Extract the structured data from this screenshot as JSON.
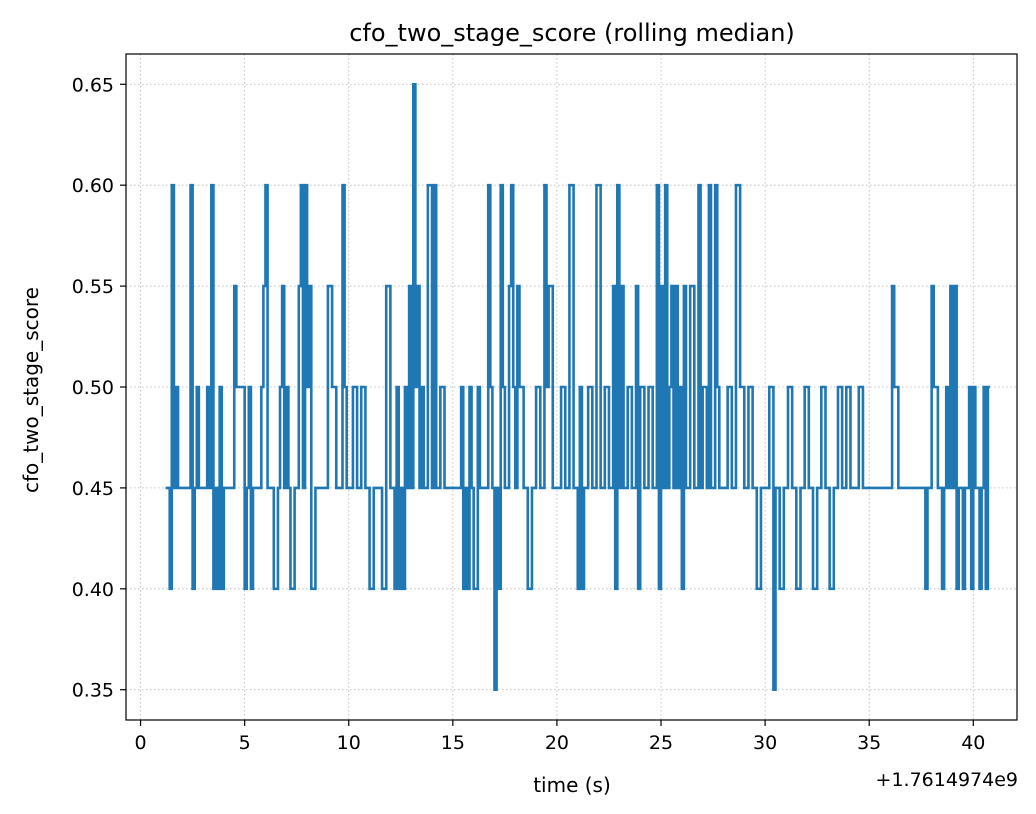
{
  "chart_data": {
    "type": "line",
    "title": "cfo_two_stage_score (rolling median)",
    "xlabel": "time (s)",
    "ylabel": "cfo_two_stage_score",
    "x_offset_label": "+1.7614974e9",
    "xlim": [
      -0.7,
      42.1
    ],
    "ylim": [
      0.335,
      0.665
    ],
    "xticks": [
      0,
      5,
      10,
      15,
      20,
      25,
      30,
      35,
      40
    ],
    "xtick_labels": [
      "0",
      "5",
      "10",
      "15",
      "20",
      "25",
      "30",
      "35",
      "40"
    ],
    "yticks": [
      0.35,
      0.4,
      0.45,
      0.5,
      0.55,
      0.6,
      0.65
    ],
    "ytick_labels": [
      "0.35",
      "0.40",
      "0.45",
      "0.50",
      "0.55",
      "0.60",
      "0.65"
    ],
    "grid": true,
    "line_color": "#1f77b4",
    "series": [
      {
        "step": true,
        "points": [
          [
            1.2,
            0.45
          ],
          [
            1.3,
            0.45
          ],
          [
            1.4,
            0.4
          ],
          [
            1.5,
            0.6
          ],
          [
            1.6,
            0.45
          ],
          [
            1.7,
            0.5
          ],
          [
            1.8,
            0.45
          ],
          [
            2.2,
            0.45
          ],
          [
            2.4,
            0.6
          ],
          [
            2.5,
            0.4
          ],
          [
            2.6,
            0.45
          ],
          [
            2.7,
            0.5
          ],
          [
            2.8,
            0.45
          ],
          [
            3.0,
            0.45
          ],
          [
            3.2,
            0.5
          ],
          [
            3.3,
            0.45
          ],
          [
            3.4,
            0.6
          ],
          [
            3.5,
            0.4
          ],
          [
            3.6,
            0.45
          ],
          [
            3.7,
            0.4
          ],
          [
            3.8,
            0.5
          ],
          [
            3.9,
            0.4
          ],
          [
            4.0,
            0.45
          ],
          [
            4.2,
            0.45
          ],
          [
            4.5,
            0.55
          ],
          [
            4.6,
            0.5
          ],
          [
            5.0,
            0.4
          ],
          [
            5.1,
            0.45
          ],
          [
            5.2,
            0.5
          ],
          [
            5.3,
            0.4
          ],
          [
            5.4,
            0.45
          ],
          [
            5.6,
            0.45
          ],
          [
            5.8,
            0.5
          ],
          [
            5.9,
            0.55
          ],
          [
            6.0,
            0.6
          ],
          [
            6.1,
            0.45
          ],
          [
            6.3,
            0.45
          ],
          [
            6.4,
            0.4
          ],
          [
            6.6,
            0.45
          ],
          [
            6.7,
            0.5
          ],
          [
            6.8,
            0.55
          ],
          [
            6.9,
            0.45
          ],
          [
            7.0,
            0.5
          ],
          [
            7.1,
            0.45
          ],
          [
            7.2,
            0.4
          ],
          [
            7.4,
            0.45
          ],
          [
            7.6,
            0.55
          ],
          [
            7.7,
            0.6
          ],
          [
            7.8,
            0.45
          ],
          [
            7.9,
            0.6
          ],
          [
            8.0,
            0.5
          ],
          [
            8.1,
            0.55
          ],
          [
            8.2,
            0.4
          ],
          [
            8.4,
            0.45
          ],
          [
            8.6,
            0.45
          ],
          [
            8.8,
            0.45
          ],
          [
            9.0,
            0.55
          ],
          [
            9.2,
            0.5
          ],
          [
            9.4,
            0.45
          ],
          [
            9.6,
            0.45
          ],
          [
            9.7,
            0.6
          ],
          [
            9.8,
            0.5
          ],
          [
            9.9,
            0.45
          ],
          [
            10.0,
            0.45
          ],
          [
            10.2,
            0.5
          ],
          [
            10.4,
            0.45
          ],
          [
            10.6,
            0.5
          ],
          [
            10.8,
            0.45
          ],
          [
            11.0,
            0.4
          ],
          [
            11.2,
            0.45
          ],
          [
            11.4,
            0.45
          ],
          [
            11.6,
            0.4
          ],
          [
            11.8,
            0.55
          ],
          [
            12.0,
            0.45
          ],
          [
            12.2,
            0.4
          ],
          [
            12.3,
            0.5
          ],
          [
            12.4,
            0.4
          ],
          [
            12.5,
            0.45
          ],
          [
            12.6,
            0.4
          ],
          [
            12.7,
            0.5
          ],
          [
            12.8,
            0.45
          ],
          [
            12.9,
            0.55
          ],
          [
            13.0,
            0.45
          ],
          [
            13.1,
            0.65
          ],
          [
            13.2,
            0.5
          ],
          [
            13.3,
            0.55
          ],
          [
            13.4,
            0.45
          ],
          [
            13.5,
            0.5
          ],
          [
            13.6,
            0.45
          ],
          [
            13.8,
            0.6
          ],
          [
            14.0,
            0.45
          ],
          [
            14.1,
            0.6
          ],
          [
            14.2,
            0.45
          ],
          [
            14.4,
            0.5
          ],
          [
            14.6,
            0.45
          ],
          [
            14.8,
            0.45
          ],
          [
            15.0,
            0.45
          ],
          [
            15.2,
            0.45
          ],
          [
            15.4,
            0.5
          ],
          [
            15.5,
            0.4
          ],
          [
            15.6,
            0.45
          ],
          [
            15.7,
            0.4
          ],
          [
            15.8,
            0.5
          ],
          [
            15.9,
            0.45
          ],
          [
            16.0,
            0.4
          ],
          [
            16.2,
            0.5
          ],
          [
            16.3,
            0.45
          ],
          [
            16.5,
            0.45
          ],
          [
            16.7,
            0.6
          ],
          [
            16.8,
            0.5
          ],
          [
            16.9,
            0.45
          ],
          [
            17.0,
            0.35
          ],
          [
            17.1,
            0.45
          ],
          [
            17.2,
            0.4
          ],
          [
            17.3,
            0.6
          ],
          [
            17.4,
            0.5
          ],
          [
            17.5,
            0.45
          ],
          [
            17.7,
            0.55
          ],
          [
            17.8,
            0.6
          ],
          [
            17.9,
            0.5
          ],
          [
            18.0,
            0.45
          ],
          [
            18.1,
            0.55
          ],
          [
            18.2,
            0.5
          ],
          [
            18.4,
            0.45
          ],
          [
            18.6,
            0.4
          ],
          [
            18.8,
            0.45
          ],
          [
            19.0,
            0.5
          ],
          [
            19.2,
            0.45
          ],
          [
            19.4,
            0.6
          ],
          [
            19.5,
            0.5
          ],
          [
            19.6,
            0.55
          ],
          [
            19.8,
            0.45
          ],
          [
            20.0,
            0.45
          ],
          [
            20.2,
            0.5
          ],
          [
            20.4,
            0.45
          ],
          [
            20.6,
            0.6
          ],
          [
            20.8,
            0.45
          ],
          [
            21.0,
            0.4
          ],
          [
            21.1,
            0.5
          ],
          [
            21.2,
            0.4
          ],
          [
            21.3,
            0.45
          ],
          [
            21.5,
            0.5
          ],
          [
            21.7,
            0.45
          ],
          [
            21.9,
            0.6
          ],
          [
            22.1,
            0.45
          ],
          [
            22.3,
            0.5
          ],
          [
            22.5,
            0.45
          ],
          [
            22.7,
            0.55
          ],
          [
            22.8,
            0.4
          ],
          [
            22.9,
            0.6
          ],
          [
            23.0,
            0.45
          ],
          [
            23.1,
            0.55
          ],
          [
            23.2,
            0.45
          ],
          [
            23.4,
            0.5
          ],
          [
            23.6,
            0.45
          ],
          [
            23.8,
            0.55
          ],
          [
            23.9,
            0.4
          ],
          [
            24.0,
            0.5
          ],
          [
            24.2,
            0.45
          ],
          [
            24.4,
            0.5
          ],
          [
            24.6,
            0.45
          ],
          [
            24.8,
            0.6
          ],
          [
            24.9,
            0.4
          ],
          [
            25.0,
            0.55
          ],
          [
            25.1,
            0.45
          ],
          [
            25.2,
            0.6
          ],
          [
            25.3,
            0.45
          ],
          [
            25.4,
            0.5
          ],
          [
            25.5,
            0.55
          ],
          [
            25.6,
            0.45
          ],
          [
            25.7,
            0.55
          ],
          [
            25.8,
            0.45
          ],
          [
            25.9,
            0.5
          ],
          [
            26.0,
            0.4
          ],
          [
            26.1,
            0.55
          ],
          [
            26.2,
            0.45
          ],
          [
            26.4,
            0.55
          ],
          [
            26.6,
            0.45
          ],
          [
            26.8,
            0.6
          ],
          [
            26.9,
            0.45
          ],
          [
            27.0,
            0.5
          ],
          [
            27.2,
            0.45
          ],
          [
            27.3,
            0.6
          ],
          [
            27.4,
            0.45
          ],
          [
            27.6,
            0.6
          ],
          [
            27.7,
            0.5
          ],
          [
            27.8,
            0.45
          ],
          [
            28.0,
            0.45
          ],
          [
            28.2,
            0.5
          ],
          [
            28.4,
            0.45
          ],
          [
            28.6,
            0.6
          ],
          [
            28.8,
            0.5
          ],
          [
            29.0,
            0.45
          ],
          [
            29.2,
            0.5
          ],
          [
            29.4,
            0.45
          ],
          [
            29.6,
            0.4
          ],
          [
            29.8,
            0.45
          ],
          [
            30.0,
            0.45
          ],
          [
            30.2,
            0.5
          ],
          [
            30.4,
            0.35
          ],
          [
            30.5,
            0.45
          ],
          [
            30.7,
            0.4
          ],
          [
            30.9,
            0.45
          ],
          [
            31.1,
            0.5
          ],
          [
            31.3,
            0.45
          ],
          [
            31.5,
            0.4
          ],
          [
            31.7,
            0.45
          ],
          [
            31.9,
            0.5
          ],
          [
            32.1,
            0.45
          ],
          [
            32.3,
            0.4
          ],
          [
            32.5,
            0.45
          ],
          [
            32.7,
            0.5
          ],
          [
            32.9,
            0.45
          ],
          [
            33.1,
            0.4
          ],
          [
            33.3,
            0.45
          ],
          [
            33.5,
            0.5
          ],
          [
            33.7,
            0.45
          ],
          [
            33.9,
            0.5
          ],
          [
            34.1,
            0.45
          ],
          [
            34.3,
            0.45
          ],
          [
            34.5,
            0.5
          ],
          [
            34.7,
            0.45
          ],
          [
            35.0,
            0.45
          ],
          [
            35.3,
            0.45
          ],
          [
            35.6,
            0.45
          ],
          [
            35.9,
            0.45
          ],
          [
            36.1,
            0.55
          ],
          [
            36.2,
            0.5
          ],
          [
            36.4,
            0.45
          ],
          [
            36.6,
            0.45
          ],
          [
            36.8,
            0.45
          ],
          [
            37.0,
            0.45
          ],
          [
            37.2,
            0.45
          ],
          [
            37.5,
            0.45
          ],
          [
            37.7,
            0.4
          ],
          [
            37.8,
            0.45
          ],
          [
            38.0,
            0.55
          ],
          [
            38.1,
            0.5
          ],
          [
            38.3,
            0.45
          ],
          [
            38.5,
            0.4
          ],
          [
            38.6,
            0.45
          ],
          [
            38.7,
            0.5
          ],
          [
            38.8,
            0.45
          ],
          [
            38.9,
            0.55
          ],
          [
            39.0,
            0.45
          ],
          [
            39.1,
            0.55
          ],
          [
            39.2,
            0.4
          ],
          [
            39.3,
            0.45
          ],
          [
            39.5,
            0.4
          ],
          [
            39.6,
            0.45
          ],
          [
            39.8,
            0.5
          ],
          [
            39.9,
            0.4
          ],
          [
            40.0,
            0.5
          ],
          [
            40.1,
            0.45
          ],
          [
            40.3,
            0.4
          ],
          [
            40.4,
            0.45
          ],
          [
            40.5,
            0.5
          ],
          [
            40.6,
            0.4
          ],
          [
            40.7,
            0.5
          ],
          [
            40.8,
            0.5
          ]
        ]
      }
    ]
  }
}
